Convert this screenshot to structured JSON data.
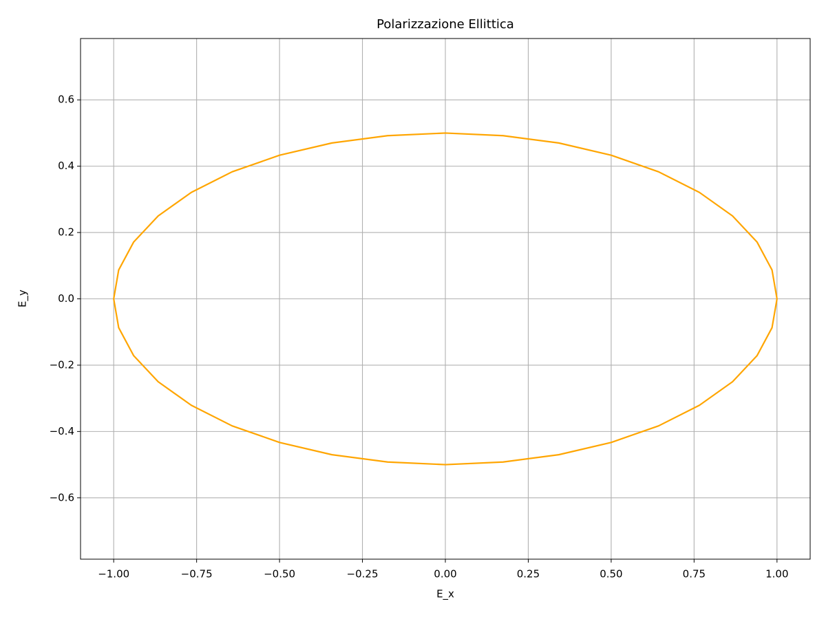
{
  "chart_data": {
    "type": "line",
    "title": "Polarizzazione Ellittica",
    "x_label": "E_x",
    "y_label": "E_y",
    "x": [
      1,
      0.985,
      0.94,
      0.866,
      0.766,
      0.643,
      0.5,
      0.342,
      0.174,
      0,
      -0.174,
      -0.342,
      -0.5,
      -0.643,
      -0.766,
      -0.866,
      -0.94,
      -0.985,
      -1,
      -0.985,
      -0.94,
      -0.866,
      -0.766,
      -0.643,
      -0.5,
      -0.342,
      -0.174,
      0,
      0.174,
      0.342,
      0.5,
      0.643,
      0.766,
      0.866,
      0.94,
      0.985,
      1
    ],
    "values": [
      0,
      0.087,
      0.171,
      0.25,
      0.321,
      0.383,
      0.433,
      0.47,
      0.492,
      0.5,
      0.492,
      0.47,
      0.433,
      0.383,
      0.321,
      0.25,
      0.171,
      0.087,
      0,
      -0.087,
      -0.171,
      -0.25,
      -0.321,
      -0.383,
      -0.433,
      -0.47,
      -0.492,
      -0.5,
      -0.492,
      -0.47,
      -0.433,
      -0.383,
      -0.321,
      -0.25,
      -0.171,
      -0.087,
      0
    ],
    "color": "#ffa500",
    "xlim": [
      -1.1,
      1.1
    ],
    "ylim": [
      -0.785,
      0.785
    ],
    "xticks": [
      {
        "value": -1,
        "label": "−1.00"
      },
      {
        "value": -0.75,
        "label": "−0.75"
      },
      {
        "value": -0.5,
        "label": "−0.50"
      },
      {
        "value": -0.25,
        "label": "−0.25"
      },
      {
        "value": 0,
        "label": "0.00"
      },
      0.25,
      {
        "value": 0.5,
        "label": "0.50"
      },
      0.75,
      {
        "value": 1,
        "label": "1.00"
      }
    ],
    "yticks": [
      {
        "value": -0.6,
        "label": "−0.6"
      },
      {
        "value": -0.4,
        "label": "−0.4"
      },
      {
        "value": -0.2,
        "label": "−0.2"
      },
      {
        "value": 0,
        "label": "0.0"
      },
      0.2,
      0.4,
      0.6
    ],
    "grid": true
  }
}
